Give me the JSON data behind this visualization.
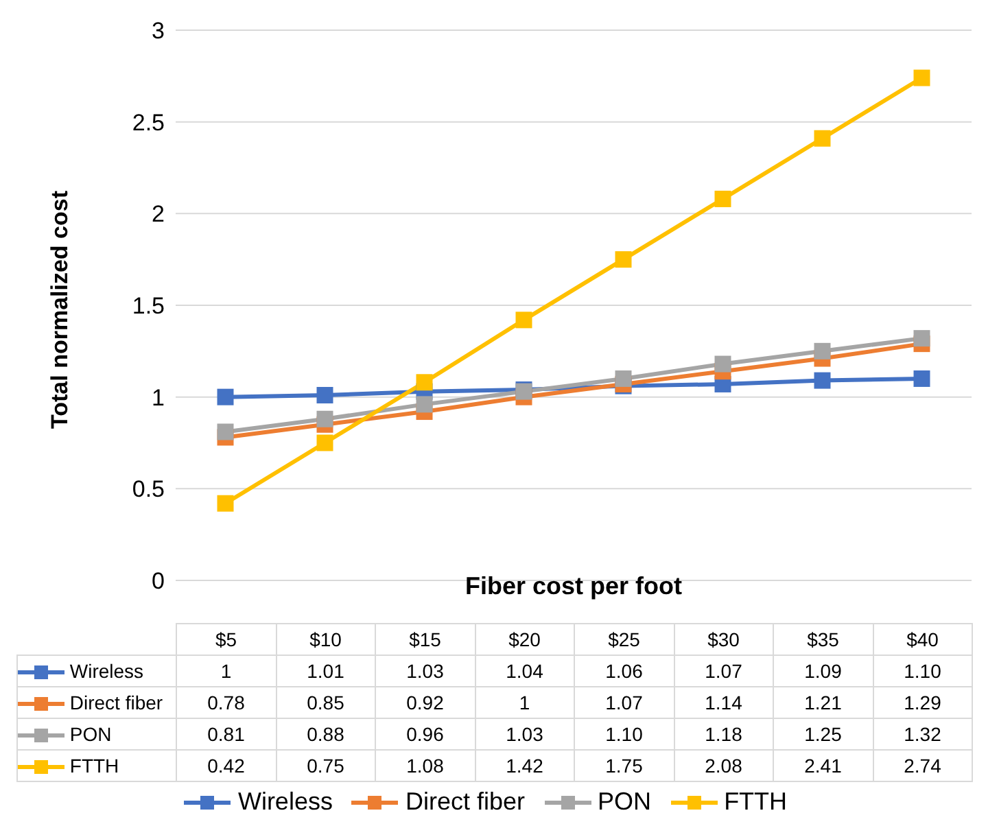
{
  "chart_data": {
    "type": "line",
    "xlabel": "Fiber cost per foot",
    "ylabel": "Total normalized cost",
    "categories": [
      "$5",
      "$10",
      "$15",
      "$20",
      "$25",
      "$30",
      "$35",
      "$40"
    ],
    "series": [
      {
        "name": "Wireless",
        "color": "#4472c4",
        "values": [
          1,
          1.01,
          1.03,
          1.04,
          1.06,
          1.07,
          1.09,
          1.1
        ],
        "value_labels": [
          "1",
          "1.01",
          "1.03",
          "1.04",
          "1.06",
          "1.07",
          "1.09",
          "1.10"
        ]
      },
      {
        "name": "Direct fiber",
        "color": "#ed7d31",
        "values": [
          0.78,
          0.85,
          0.92,
          1,
          1.07,
          1.14,
          1.21,
          1.29
        ],
        "value_labels": [
          "0.78",
          "0.85",
          "0.92",
          "1",
          "1.07",
          "1.14",
          "1.21",
          "1.29"
        ]
      },
      {
        "name": "PON",
        "color": "#a5a5a5",
        "values": [
          0.81,
          0.88,
          0.96,
          1.03,
          1.1,
          1.18,
          1.25,
          1.32
        ],
        "value_labels": [
          "0.81",
          "0.88",
          "0.96",
          "1.03",
          "1.10",
          "1.18",
          "1.25",
          "1.32"
        ]
      },
      {
        "name": "FTTH",
        "color": "#ffc000",
        "values": [
          0.42,
          0.75,
          1.08,
          1.42,
          1.75,
          2.08,
          2.41,
          2.74
        ],
        "value_labels": [
          "0.42",
          "0.75",
          "1.08",
          "1.42",
          "1.75",
          "2.08",
          "2.41",
          "2.74"
        ]
      }
    ],
    "ylim": [
      0,
      3
    ],
    "yticks": [
      0,
      0.5,
      1,
      1.5,
      2,
      2.5,
      3
    ],
    "grid": "y",
    "legend": "bottom",
    "marker": "square",
    "line_style": "solid"
  }
}
